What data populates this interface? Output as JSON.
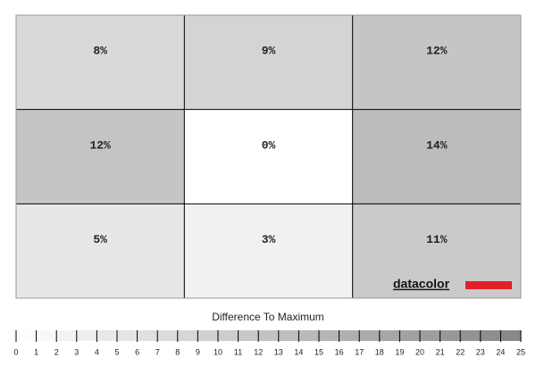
{
  "chart_data": {
    "type": "heatmap",
    "title": "Difference To Maximum",
    "values": [
      [
        8,
        9,
        12
      ],
      [
        12,
        0,
        14
      ],
      [
        5,
        3,
        11
      ]
    ],
    "value_labels": [
      [
        "8%",
        "9%",
        "12%"
      ],
      [
        "12%",
        "0%",
        "14%"
      ],
      [
        "5%",
        "3%",
        "11%"
      ]
    ],
    "colorbar_ticks": [
      0,
      1,
      2,
      3,
      4,
      5,
      6,
      7,
      8,
      9,
      10,
      11,
      12,
      13,
      14,
      15,
      16,
      17,
      18,
      19,
      20,
      21,
      22,
      23,
      24,
      25
    ],
    "logo": "datacolor"
  }
}
